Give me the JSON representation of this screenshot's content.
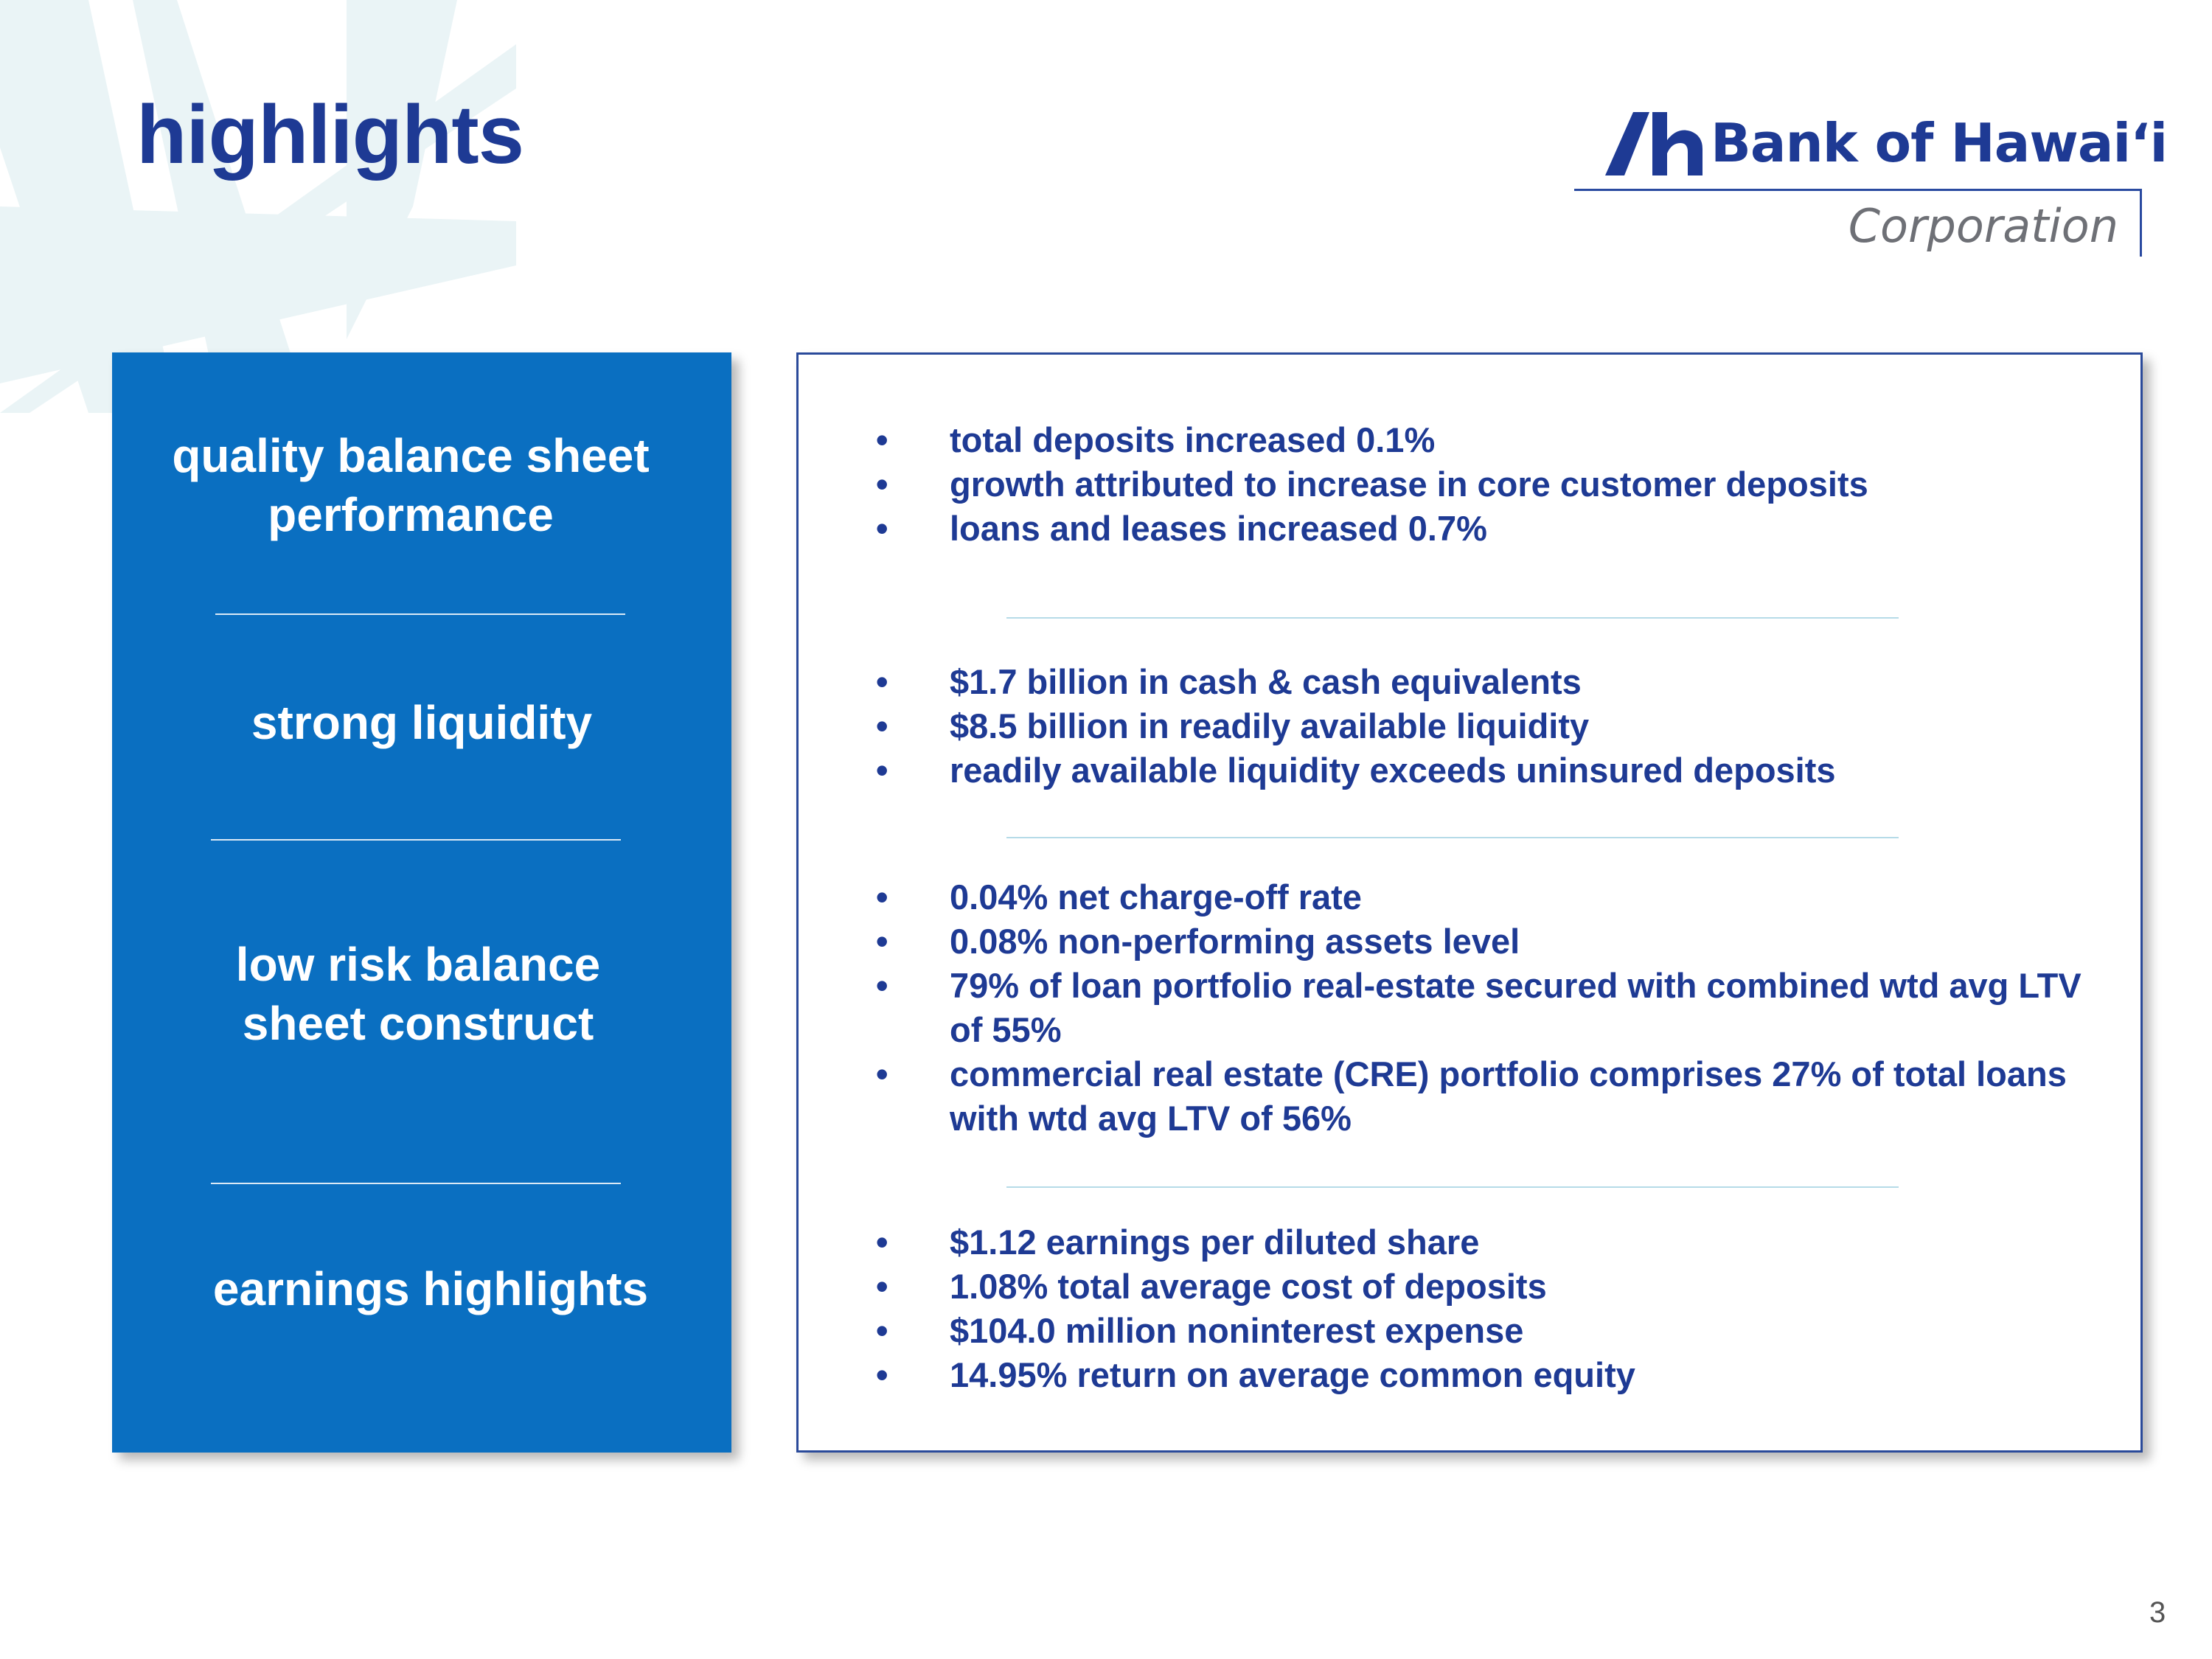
{
  "page": {
    "title": "highlights",
    "page_number": "3"
  },
  "logo": {
    "name": "Bank of Hawaiʻi",
    "subtitle": "Corporation",
    "brand_color": "#1e3a94"
  },
  "categories": [
    {
      "label": "quality balance sheet performance"
    },
    {
      "label": "strong liquidity"
    },
    {
      "label": "low risk balance sheet construct"
    },
    {
      "label": "earnings highlights"
    }
  ],
  "sections": [
    {
      "bullets": [
        "total deposits increased 0.1%",
        "growth attributed to increase in core customer deposits",
        "loans and leases increased 0.7%"
      ]
    },
    {
      "bullets": [
        "$1.7 billion in cash & cash equivalents",
        "$8.5 billion in readily available liquidity",
        "readily available liquidity exceeds uninsured deposits"
      ]
    },
    {
      "bullets": [
        "0.04% net charge-off rate",
        "0.08% non-performing assets level",
        "79% of loan portfolio real-estate secured with combined wtd avg LTV of 55%",
        "commercial real estate (CRE) portfolio comprises 27% of total loans with wtd avg LTV of 56%"
      ]
    },
    {
      "bullets": [
        "$1.12 earnings per diluted share",
        "1.08% total average cost of deposits",
        "$104.0 million noninterest expense",
        "14.95% return on average common equity"
      ]
    }
  ],
  "colors": {
    "panel_blue": "#0a6fc1",
    "text_navy": "#1e3a94",
    "divider_light": "#b6dbe8"
  }
}
